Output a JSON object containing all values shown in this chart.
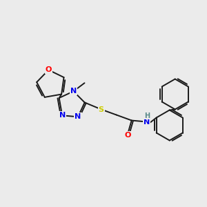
{
  "bg_color": "#ebebeb",
  "bond_color": "#1a1a1a",
  "atom_colors": {
    "O": "#ff0000",
    "N": "#0000ee",
    "S": "#cccc00",
    "C": "#1a1a1a",
    "H": "#5a8a8a"
  },
  "lw": 1.4,
  "fontsize": 7.5
}
